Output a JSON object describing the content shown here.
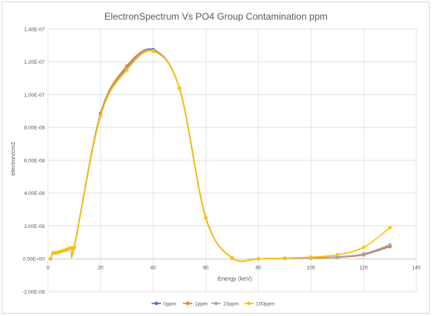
{
  "chart_data": {
    "type": "line",
    "title": "ElectronSpectrum Vs PO4 Group Contamination ppm",
    "xlabel": "Energy (keV)",
    "ylabel": "electron/cm2",
    "xlim": [
      0,
      140
    ],
    "ylim": [
      -2e-08,
      1.4e-07
    ],
    "x_ticks": [
      "0",
      "20",
      "40",
      "60",
      "80",
      "100",
      "120",
      "140"
    ],
    "y_ticks": [
      "-2.00E-08",
      "0.00E+00",
      "2.00E-08",
      "4.00E-08",
      "6.00E-08",
      "8.00E-08",
      "1.00E-07",
      "1.20E-07",
      "1.40E-07"
    ],
    "grid": true,
    "legend_position": "bottom",
    "x": [
      1,
      2,
      3,
      4,
      5,
      6,
      7,
      8,
      9,
      10,
      20,
      30,
      40,
      50,
      60,
      70,
      80,
      90,
      100,
      110,
      120,
      130
    ],
    "series": [
      {
        "name": "0ppm",
        "color": "#4472C4",
        "values": [
          0.0,
          3.6e-09,
          3.7e-09,
          4e-09,
          4.5e-09,
          5e-09,
          5.6e-09,
          6.2e-09,
          6.6e-09,
          7e-09,
          8.85e-08,
          1.17e-07,
          1.275e-07,
          1.04e-07,
          2.5e-08,
          5e-10,
          0.0,
          3e-10,
          5e-10,
          1e-09,
          2.5e-09,
          7.5e-09
        ]
      },
      {
        "name": "1ppm",
        "color": "#ED7D31",
        "values": [
          0.0,
          3.6e-09,
          3.7e-09,
          4e-09,
          4.5e-09,
          5e-09,
          5.6e-09,
          6.2e-09,
          6.6e-09,
          7e-09,
          8.8e-08,
          1.175e-07,
          1.27e-07,
          1.04e-07,
          2.5e-08,
          5e-10,
          0.0,
          3e-10,
          5e-10,
          1e-09,
          2.6e-09,
          7.8e-09
        ]
      },
      {
        "name": "10ppm",
        "color": "#A5A5A5",
        "values": [
          0.0,
          3.6e-09,
          3.7e-09,
          4e-09,
          4.5e-09,
          5e-09,
          5.6e-09,
          6.2e-09,
          6.6e-09,
          7e-09,
          8.75e-08,
          1.16e-07,
          1.27e-07,
          1.04e-07,
          2.5e-08,
          5e-10,
          0.0,
          3e-10,
          6e-10,
          1.2e-09,
          3e-09,
          8.5e-09
        ]
      },
      {
        "name": "100ppm",
        "color": "#FFC000",
        "values": [
          0.0,
          3.7e-09,
          3.8e-09,
          4.1e-09,
          4.6e-09,
          5.1e-09,
          5.7e-09,
          6.3e-09,
          6.7e-09,
          7.1e-09,
          8.7e-08,
          1.15e-07,
          1.265e-07,
          1.04e-07,
          2.5e-08,
          5e-10,
          0.0,
          4e-10,
          1e-09,
          2.5e-09,
          7e-09,
          1.9e-08
        ]
      }
    ]
  }
}
